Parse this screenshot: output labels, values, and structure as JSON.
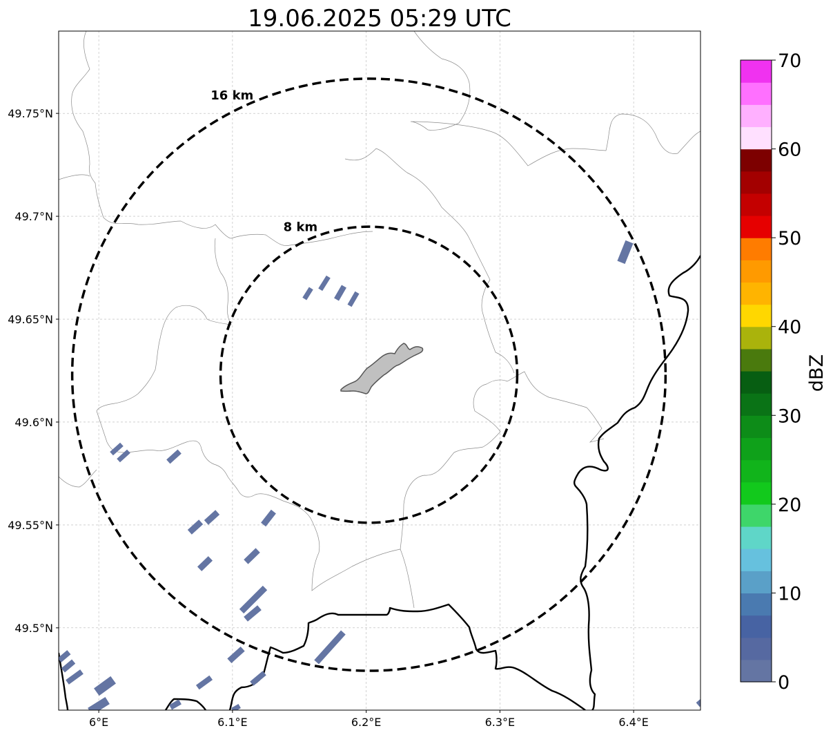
{
  "title": "19.06.2025 05:29 UTC",
  "map": {
    "lon_range": [
      5.97,
      6.45
    ],
    "lat_range": [
      49.46,
      49.79
    ],
    "lon_ticks": [
      {
        "value": 6.0,
        "label": "6°E"
      },
      {
        "value": 6.1,
        "label": "6.1°E"
      },
      {
        "value": 6.2,
        "label": "6.2°E"
      },
      {
        "value": 6.3,
        "label": "6.3°E"
      },
      {
        "value": 6.4,
        "label": "6.4°E"
      }
    ],
    "lat_ticks": [
      {
        "value": 49.75,
        "label": "49.75°N"
      },
      {
        "value": 49.7,
        "label": "49.7°N"
      },
      {
        "value": 49.65,
        "label": "49.65°N"
      },
      {
        "value": 49.6,
        "label": "49.6°N"
      },
      {
        "value": 49.55,
        "label": "49.55°N"
      },
      {
        "value": 49.5,
        "label": "49.5°N"
      }
    ],
    "grid": true,
    "center": {
      "lon": 6.202,
      "lat": 49.623
    },
    "rings": [
      {
        "radius_km": 8,
        "label": "8 km"
      },
      {
        "radius_km": 16,
        "label": "16 km"
      }
    ]
  },
  "colorbar": {
    "label": "dBZ",
    "min": 0,
    "max": 70,
    "ticks": [
      {
        "value": 0,
        "label": "0"
      },
      {
        "value": 10,
        "label": "10"
      },
      {
        "value": 20,
        "label": "20"
      },
      {
        "value": 30,
        "label": "30"
      },
      {
        "value": 40,
        "label": "40"
      },
      {
        "value": 50,
        "label": "50"
      },
      {
        "value": 60,
        "label": "60"
      },
      {
        "value": 70,
        "label": "70"
      }
    ],
    "colors": [
      "#6475a3",
      "#5669a1",
      "#4763a3",
      "#4a7ab0",
      "#5aa0c8",
      "#66c1de",
      "#5fd6c8",
      "#3ed66a",
      "#12c91c",
      "#11b41b",
      "#0fa11a",
      "#0d8c18",
      "#0a7316",
      "#075e12",
      "#4a7a0d",
      "#aab30c",
      "#ffd700",
      "#ffb400",
      "#ff9a00",
      "#ff7c00",
      "#e60000",
      "#c40000",
      "#a30000",
      "#7d0000",
      "#ffe0ff",
      "#ffb0ff",
      "#ff70ff",
      "#f032f0"
    ]
  },
  "echo_color": "#6475a3"
}
